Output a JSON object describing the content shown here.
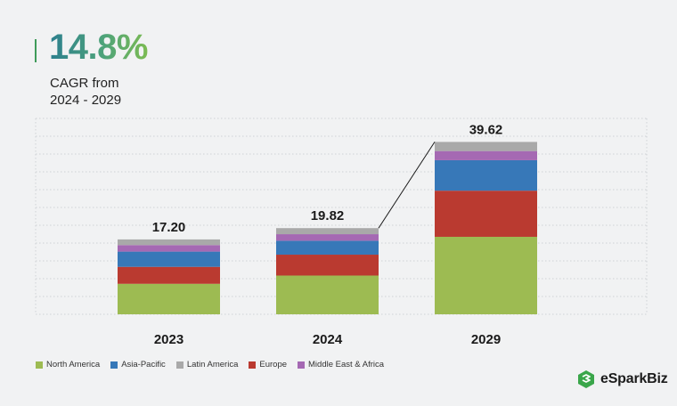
{
  "cagr": {
    "value": "14.8%",
    "label_line1": "CAGR from",
    "label_line2": "2024 - 2029"
  },
  "brand": {
    "name": "eSparkBiz",
    "icon": "esparkbiz-logo-icon",
    "color": "#3aa64a"
  },
  "colors": {
    "North America": "#9dbb52",
    "Asia-Pacific": "#3778b8",
    "Latin America": "#a9a9a9",
    "Europe": "#ba3a30",
    "Middle East & Africa": "#a569b3"
  },
  "chart_data": {
    "type": "bar",
    "stacked": true,
    "categories": [
      "2023",
      "2024",
      "2029"
    ],
    "totals": [
      "17.20",
      "19.82",
      "39.62"
    ],
    "series": [
      {
        "name": "North America",
        "values": [
          7.0,
          8.9,
          17.8
        ]
      },
      {
        "name": "Europe",
        "values": [
          3.9,
          4.8,
          10.6
        ]
      },
      {
        "name": "Asia-Pacific",
        "values": [
          3.5,
          3.2,
          7.0
        ]
      },
      {
        "name": "Middle East & Africa",
        "values": [
          1.5,
          1.5,
          2.1
        ]
      },
      {
        "name": "Latin America",
        "values": [
          1.3,
          1.4,
          2.1
        ]
      }
    ],
    "legend_order": [
      "North America",
      "Asia-Pacific",
      "Latin America",
      "Europe",
      "Middle East & Africa"
    ],
    "ylim": [
      0,
      45
    ],
    "grid": true,
    "legend_position": "bottom-left"
  }
}
